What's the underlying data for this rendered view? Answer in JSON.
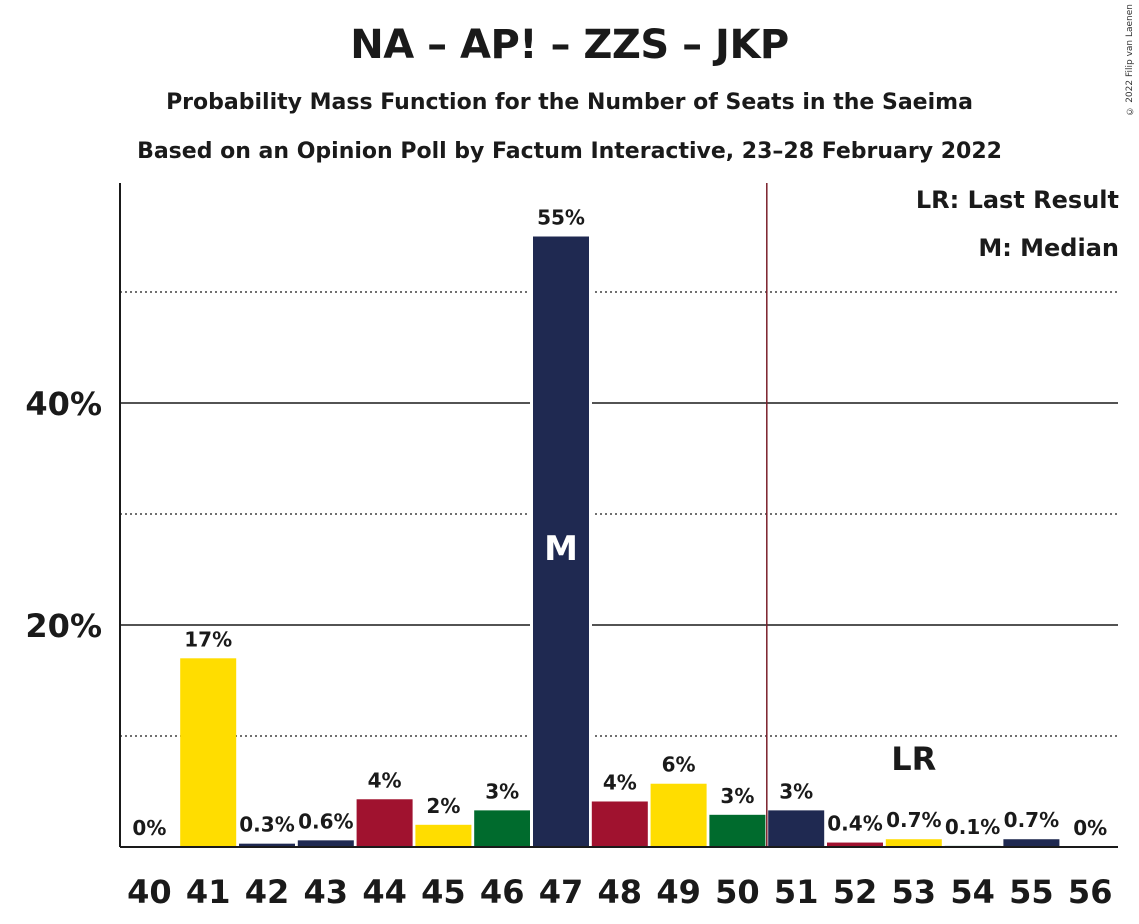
{
  "chart_data": {
    "type": "bar",
    "title": "NA – AP! – ZZS – JKP",
    "subtitle": "Probability Mass Function for the Number of Seats in the Saeima",
    "subtitle2": "Based on an Opinion Poll by Factum Interactive, 23–28 February 2022",
    "copyright": "© 2022 Filip van Laenen",
    "legend": {
      "placement": "top-right",
      "last_result": "LR: Last Result",
      "median": "M: Median"
    },
    "categories": [
      40,
      41,
      42,
      43,
      44,
      45,
      46,
      47,
      48,
      49,
      50,
      51,
      52,
      53,
      54,
      55,
      56
    ],
    "values": [
      0,
      17,
      0.3,
      0.6,
      4.3,
      2,
      3.3,
      55,
      4.1,
      5.7,
      2.9,
      3.3,
      0.4,
      0.7,
      0.1,
      0.7,
      0
    ],
    "labels": [
      "0%",
      "17%",
      "0.3%",
      "0.6%",
      "4%",
      "2%",
      "3%",
      "55%",
      "4%",
      "6%",
      "3%",
      "3%",
      "0.4%",
      "0.7%",
      "0.1%",
      "0.7%",
      "0%"
    ],
    "colors": [
      "#FFDD00",
      "#FFDD00",
      "#1F2951",
      "#1F2951",
      "#A0122F",
      "#FFDD00",
      "#006B2D",
      "#1F2951",
      "#A0122F",
      "#FFDD00",
      "#006B2D",
      "#1F2951",
      "#A0122F",
      "#FFDD00",
      "#006B2D",
      "#1F2951",
      "#A0122F"
    ],
    "ylim": [
      0,
      60
    ],
    "yticks_major": [
      20,
      40
    ],
    "ytick_labels": [
      "20%",
      "40%"
    ],
    "yticks_minor": [
      10,
      30,
      50
    ],
    "median": 47,
    "median_label": "M",
    "last_result": 53,
    "last_result_label": "LR",
    "majority_line_after": 50,
    "grid": true
  }
}
